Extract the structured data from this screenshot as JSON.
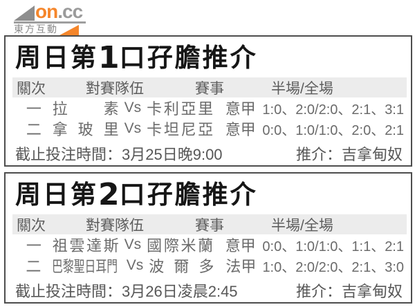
{
  "logo": {
    "brand_primary": "on",
    "brand_secondary": ".cc",
    "subtitle": "東方互動",
    "colors": {
      "orange": "#f5862b",
      "gray": "#8e8e8e"
    }
  },
  "ui": {
    "vs": "Vs"
  },
  "tables": [
    {
      "title": {
        "prefix": "周日第",
        "number": "1",
        "suffix": "口孖膽推介"
      },
      "columns": {
        "leg": "關次",
        "match": "對賽隊伍",
        "league": "賽事",
        "score": "半場/全場"
      },
      "rows": [
        {
          "leg": "一",
          "home": "拉素",
          "away": "卡利亞里",
          "league": "意甲",
          "tips": "1:0、2:0/2:0、2:1、3:1"
        },
        {
          "leg": "二",
          "home": "拿玻里",
          "away": "卡坦尼亞",
          "league": "意甲",
          "tips": "0:0、1:0/1:0、2:0、2:1"
        }
      ],
      "footer": {
        "deadline_label": "截止投注時間：",
        "deadline": "3月25日晚9:00",
        "tipster_label": "推介：",
        "tipster": "吉拿甸奴"
      }
    },
    {
      "title": {
        "prefix": "周日第",
        "number": "2",
        "suffix": "口孖膽推介"
      },
      "columns": {
        "leg": "關次",
        "match": "對賽隊伍",
        "league": "賽事",
        "score": "半場/全場"
      },
      "rows": [
        {
          "leg": "一",
          "home": "祖雲達斯",
          "away": "國際米蘭",
          "league": "意甲",
          "tips": "0:0、1:0/1:0、1:1、2:1"
        },
        {
          "leg": "二",
          "home": "巴黎聖日耳門",
          "away": "波爾多",
          "league": "法甲",
          "tips": "1:0、2:0/2:0、2:1、3:0"
        }
      ],
      "footer": {
        "deadline_label": "截止投注時間：",
        "deadline": "3月26日凌晨2:45",
        "tipster_label": "推介：",
        "tipster": "吉拿甸奴"
      }
    }
  ]
}
